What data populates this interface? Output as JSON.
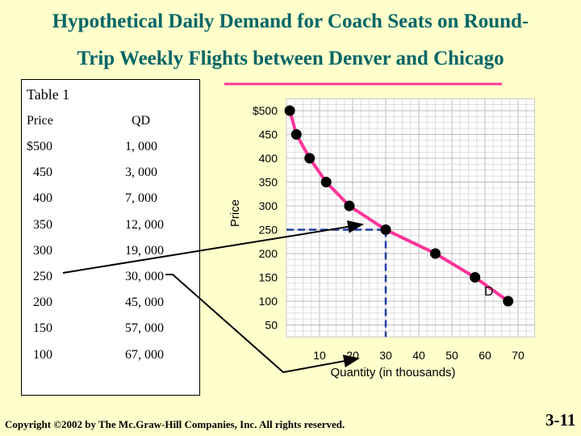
{
  "title_line1": "Hypothetical Daily Demand for Coach Seats on Round-",
  "title_line2": "Trip Weekly Flights between Denver and Chicago",
  "table": {
    "title": "Table 1",
    "headers": [
      "Price",
      "QD"
    ],
    "rows": [
      [
        "$500",
        "1, 000"
      ],
      [
        "450",
        "3, 000"
      ],
      [
        "400",
        "7, 000"
      ],
      [
        "350",
        "12, 000"
      ],
      [
        "300",
        "19, 000"
      ],
      [
        "250",
        "30, 000"
      ],
      [
        "200",
        "45, 000"
      ],
      [
        "150",
        "57, 000"
      ],
      [
        "100",
        "67, 000"
      ]
    ]
  },
  "chart_data": {
    "type": "line",
    "xlabel": "Quantity (in thousands)",
    "ylabel": "Price",
    "x_ticks": [
      "10",
      "20",
      "30",
      "40",
      "50",
      "60",
      "70"
    ],
    "y_ticks": [
      "$500",
      "450",
      "400",
      "350",
      "300",
      "250",
      "200",
      "150",
      "100",
      "50"
    ],
    "xlim": [
      0,
      75
    ],
    "ylim": [
      25,
      525
    ],
    "grid": true,
    "series": [
      {
        "name": "D",
        "points": [
          [
            1,
            500
          ],
          [
            3,
            450
          ],
          [
            7,
            400
          ],
          [
            12,
            350
          ],
          [
            19,
            300
          ],
          [
            30,
            250
          ],
          [
            45,
            200
          ],
          [
            57,
            150
          ],
          [
            67,
            100
          ]
        ]
      }
    ],
    "highlight": {
      "x": 30,
      "y": 250
    },
    "line_color": "#ff3399",
    "point_color": "#000000",
    "guide_color": "#1f3fa6"
  },
  "copyright": "Copyright ©2002 by The Mc.Graw-Hill Companies, Inc.  All rights reserved.",
  "slide_number": "3-11"
}
